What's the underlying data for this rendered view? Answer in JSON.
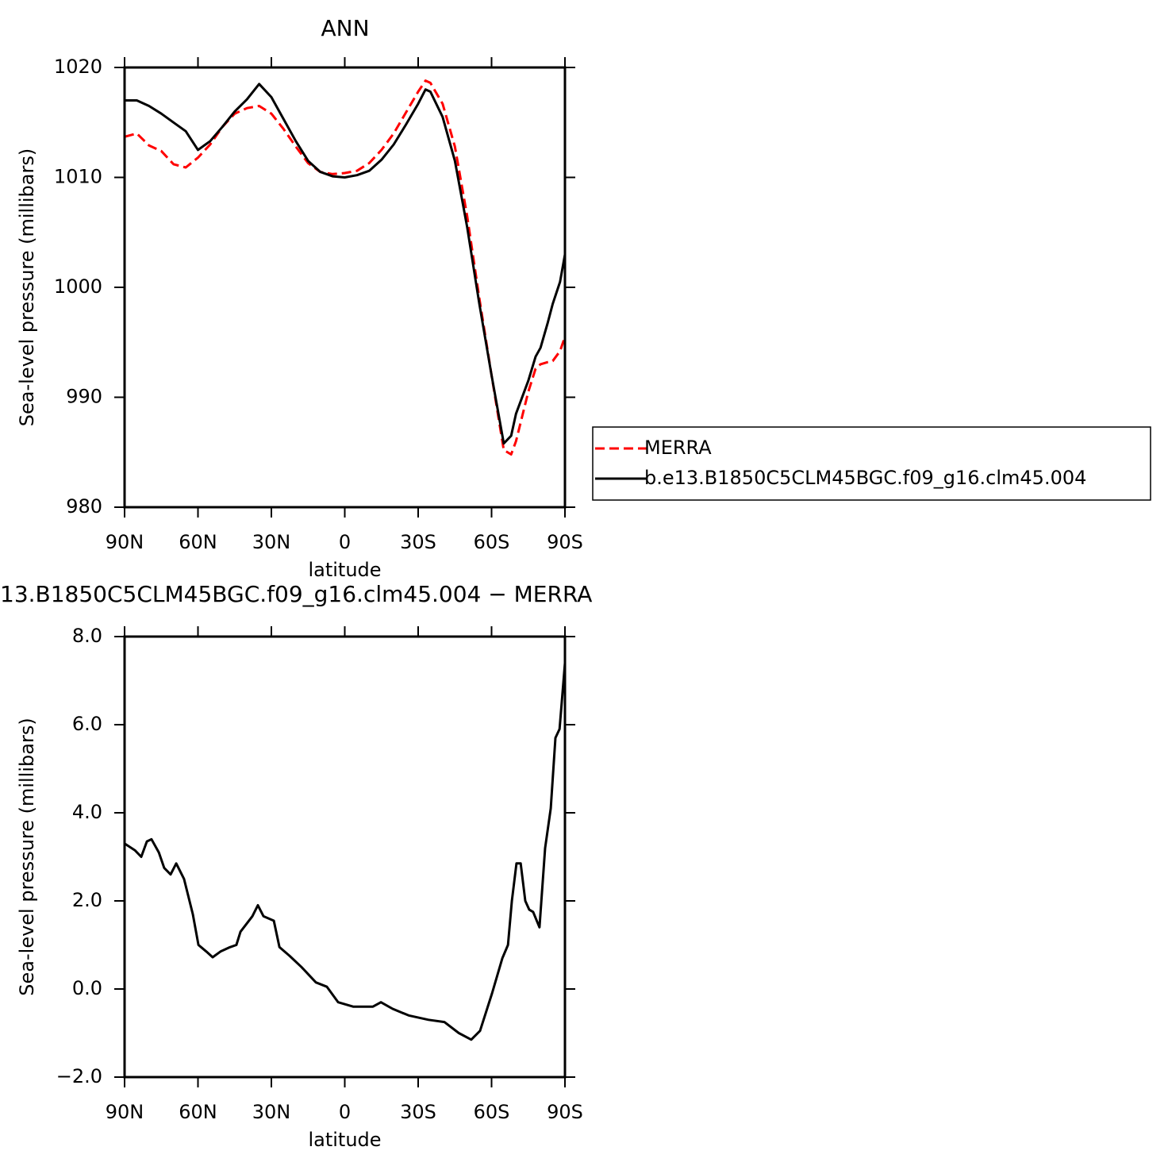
{
  "chart_data": [
    {
      "type": "line",
      "title": "ANN",
      "xlabel": "latitude",
      "ylabel": "Sea-level pressure (millibars)",
      "x": [
        90,
        85,
        80,
        75,
        70,
        65,
        60,
        55,
        50,
        45,
        40,
        35,
        30,
        25,
        20,
        15,
        10,
        5,
        0,
        -5,
        -10,
        -15,
        -20,
        -25,
        -30,
        -33,
        -35,
        -40,
        -45,
        -50,
        -55,
        -60,
        -65,
        -68,
        -70,
        -75,
        -78,
        -80,
        -83,
        -85,
        -88,
        -90
      ],
      "series": [
        {
          "name": "MERRA",
          "color": "#ff0000",
          "dash": true,
          "values": [
            1013.7,
            1014.0,
            1012.9,
            1012.4,
            1011.2,
            1010.9,
            1011.8,
            1013.0,
            1014.6,
            1015.8,
            1016.3,
            1016.5,
            1015.8,
            1014.4,
            1012.8,
            1011.3,
            1010.5,
            1010.3,
            1010.4,
            1010.6,
            1011.3,
            1012.5,
            1014.0,
            1015.9,
            1017.8,
            1018.8,
            1018.6,
            1016.7,
            1012.8,
            1006.5,
            999.0,
            992.0,
            985.2,
            984.8,
            986.0,
            990.5,
            992.6,
            993.0,
            993.2,
            993.3,
            994.2,
            995.5
          ]
        },
        {
          "name": "b.e13.B1850C5CLM45BGC.f09_g16.clm45.004",
          "color": "#000000",
          "dash": false,
          "values": [
            1017.0,
            1017.0,
            1016.5,
            1015.8,
            1015.0,
            1014.2,
            1012.5,
            1013.3,
            1014.6,
            1016.0,
            1017.1,
            1018.5,
            1017.3,
            1015.3,
            1013.3,
            1011.5,
            1010.5,
            1010.1,
            1010.0,
            1010.2,
            1010.6,
            1011.6,
            1013.0,
            1014.8,
            1016.7,
            1018.0,
            1017.8,
            1015.5,
            1011.5,
            1005.5,
            998.5,
            992.0,
            985.8,
            986.5,
            988.5,
            991.5,
            993.7,
            994.5,
            996.8,
            998.5,
            1000.5,
            1003.0
          ]
        }
      ],
      "xlim": [
        90,
        -90
      ],
      "xticks": [
        {
          "value": 90,
          "label": "90N"
        },
        {
          "value": 60,
          "label": "60N"
        },
        {
          "value": 30,
          "label": "30N"
        },
        0,
        {
          "value": -30,
          "label": "30S"
        },
        {
          "value": -60,
          "label": "60S"
        },
        {
          "value": -90,
          "label": "90S"
        }
      ],
      "ylim": [
        980,
        1020
      ],
      "yticks": [
        980,
        990,
        1000,
        1010,
        1020
      ],
      "legend": "right"
    },
    {
      "type": "line",
      "title": "13.B1850C5CLM45BGC.f09_g16.clm45.004 − MERRA",
      "xlabel": "latitude",
      "ylabel": "Sea-level pressure (millibars)",
      "x": [
        90,
        85.8,
        83.2,
        80.9,
        79,
        76,
        73.8,
        71.2,
        68.9,
        65.7,
        62.1,
        59.8,
        56.6,
        54,
        50.8,
        46.9,
        44.3,
        42.6,
        37.8,
        35.5,
        33.2,
        29,
        26.7,
        22.5,
        17.7,
        11.8,
        7.3,
        2.7,
        -3.4,
        -11.5,
        -14.8,
        -19.6,
        -26.1,
        -34.2,
        -40.7,
        -46.6,
        -51.7,
        -55.3,
        -60.2,
        -64.4,
        -66.7,
        -68.3,
        -70.2,
        -71.9,
        -73.8,
        -75.4,
        -77,
        -79.6,
        -81.9,
        -84.2,
        -86.1,
        -87.8,
        -90
      ],
      "series": [
        {
          "color": "#000000",
          "dash": false,
          "values": [
            3.3,
            3.15,
            3.0,
            3.35,
            3.4,
            3.1,
            2.75,
            2.6,
            2.85,
            2.5,
            1.7,
            1.0,
            0.85,
            0.72,
            0.85,
            0.95,
            1.0,
            1.3,
            1.65,
            1.9,
            1.65,
            1.55,
            0.95,
            0.75,
            0.5,
            0.15,
            0.05,
            -0.3,
            -0.4,
            -0.4,
            -0.3,
            -0.45,
            -0.6,
            -0.7,
            -0.75,
            -1.0,
            -1.15,
            -0.95,
            -0.1,
            0.7,
            1.0,
            2.0,
            2.85,
            2.85,
            2.0,
            1.8,
            1.75,
            1.4,
            3.2,
            4.1,
            5.7,
            5.9,
            7.4
          ]
        }
      ],
      "xlim": [
        90,
        -90
      ],
      "xticks": [
        {
          "value": 90,
          "label": "90N"
        },
        {
          "value": 60,
          "label": "60N"
        },
        {
          "value": 30,
          "label": "30N"
        },
        0,
        {
          "value": -30,
          "label": "30S"
        },
        {
          "value": -60,
          "label": "60S"
        },
        {
          "value": -90,
          "label": "90S"
        }
      ],
      "ylim": [
        -2,
        8
      ],
      "yticks": [
        {
          "value": -2,
          "label": "−2.0"
        },
        {
          "value": 0,
          "label": "0.0"
        },
        {
          "value": 2,
          "label": "2.0"
        },
        {
          "value": 4,
          "label": "4.0"
        },
        {
          "value": 6,
          "label": "6.0"
        },
        {
          "value": 8,
          "label": "8.0"
        }
      ]
    }
  ]
}
